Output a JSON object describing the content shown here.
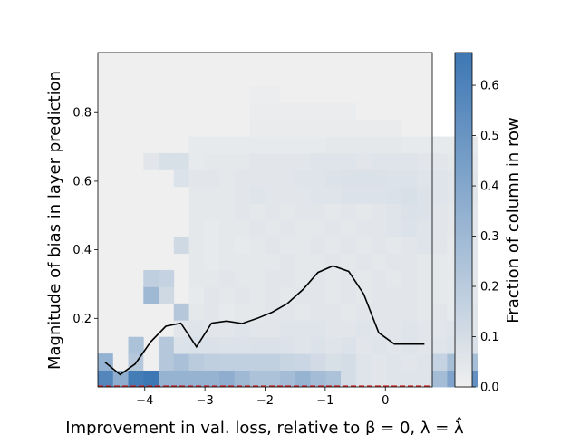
{
  "chart_data": {
    "type": "heatmap",
    "xlabel": "Improvement in val. loss, relative to β = 0, λ = λ̂",
    "ylabel": "Magnitude of bias in layer prediction",
    "colorbar_label": "Fraction of column in row",
    "xlim": [
      -4.78,
      0.78
    ],
    "ylim": [
      0.0,
      0.975
    ],
    "x_ticks": [
      -4,
      -3,
      -2,
      -1,
      0
    ],
    "x_tick_labels": [
      "−4",
      "−3",
      "−2",
      "−1",
      "0"
    ],
    "y_ticks": [
      0.2,
      0.4,
      0.6,
      0.8
    ],
    "y_tick_labels": [
      "0.2",
      "0.4",
      "0.6",
      "0.8"
    ],
    "colorbar_ticks": [
      0.0,
      0.1,
      0.2,
      0.3,
      0.4,
      0.5,
      0.6
    ],
    "colorbar_tick_labels": [
      "0.0",
      "0.1",
      "0.2",
      "0.3",
      "0.4",
      "0.5",
      "0.6"
    ],
    "colorbar_range": [
      0.0,
      0.665
    ],
    "colormap": [
      "#efefef",
      "#3d77b4"
    ],
    "bin_x_start": -4.78,
    "bin_x_width": 0.2525,
    "bin_y_width": 0.0487,
    "cells": [
      [
        0,
        0,
        0.58
      ],
      [
        1,
        0,
        0.36
      ],
      [
        2,
        0,
        0.64
      ],
      [
        3,
        0,
        0.66
      ],
      [
        4,
        0,
        0.33
      ],
      [
        5,
        0,
        0.33
      ],
      [
        6,
        0,
        0.33
      ],
      [
        7,
        0,
        0.33
      ],
      [
        8,
        0,
        0.36
      ],
      [
        9,
        0,
        0.3
      ],
      [
        10,
        0,
        0.25
      ],
      [
        11,
        0,
        0.25
      ],
      [
        12,
        0,
        0.28
      ],
      [
        13,
        0,
        0.33
      ],
      [
        14,
        0,
        0.28
      ],
      [
        15,
        0,
        0.25
      ],
      [
        16,
        0,
        0.1
      ],
      [
        17,
        0,
        0.06
      ],
      [
        18,
        0,
        0.05
      ],
      [
        19,
        0,
        0.06
      ],
      [
        20,
        0,
        0.06
      ],
      [
        21,
        0,
        0.06
      ],
      [
        22,
        0,
        0.28
      ],
      [
        23,
        0,
        0.42
      ],
      [
        24,
        0,
        0.52
      ],
      [
        0,
        1,
        0.34
      ],
      [
        1,
        1,
        0.0
      ],
      [
        2,
        1,
        0.22
      ],
      [
        3,
        1,
        0.0
      ],
      [
        4,
        1,
        0.22
      ],
      [
        5,
        1,
        0.26
      ],
      [
        6,
        1,
        0.2
      ],
      [
        7,
        1,
        0.18
      ],
      [
        8,
        1,
        0.17
      ],
      [
        9,
        1,
        0.17
      ],
      [
        10,
        1,
        0.17
      ],
      [
        11,
        1,
        0.17
      ],
      [
        12,
        1,
        0.15
      ],
      [
        13,
        1,
        0.14
      ],
      [
        14,
        1,
        0.11
      ],
      [
        15,
        1,
        0.09
      ],
      [
        16,
        1,
        0.1
      ],
      [
        17,
        1,
        0.06
      ],
      [
        18,
        1,
        0.05
      ],
      [
        19,
        1,
        0.06
      ],
      [
        20,
        1,
        0.05
      ],
      [
        21,
        1,
        0.06
      ],
      [
        22,
        1,
        0.16
      ],
      [
        23,
        1,
        0.27
      ],
      [
        24,
        1,
        0.27
      ],
      [
        2,
        2,
        0.25
      ],
      [
        4,
        2,
        0.22
      ],
      [
        5,
        2,
        0.07
      ],
      [
        6,
        2,
        0.08
      ],
      [
        7,
        2,
        0.08
      ],
      [
        8,
        2,
        0.07
      ],
      [
        9,
        2,
        0.07
      ],
      [
        10,
        2,
        0.08
      ],
      [
        11,
        2,
        0.08
      ],
      [
        12,
        2,
        0.07
      ],
      [
        13,
        2,
        0.06
      ],
      [
        14,
        2,
        0.07
      ],
      [
        15,
        2,
        0.06
      ],
      [
        16,
        2,
        0.07
      ],
      [
        17,
        2,
        0.05
      ],
      [
        18,
        2,
        0.06
      ],
      [
        19,
        2,
        0.05
      ],
      [
        20,
        2,
        0.06
      ],
      [
        21,
        2,
        0.05
      ],
      [
        22,
        2,
        0.06
      ],
      [
        23,
        2,
        0.07
      ],
      [
        24,
        2,
        0.08
      ],
      [
        3,
        3,
        0.0
      ],
      [
        5,
        3,
        0.05
      ],
      [
        6,
        3,
        0.06
      ],
      [
        7,
        3,
        0.05
      ],
      [
        8,
        3,
        0.05
      ],
      [
        9,
        3,
        0.06
      ],
      [
        10,
        3,
        0.05
      ],
      [
        11,
        3,
        0.05
      ],
      [
        12,
        3,
        0.06
      ],
      [
        13,
        3,
        0.06
      ],
      [
        14,
        3,
        0.06
      ],
      [
        15,
        3,
        0.05
      ],
      [
        16,
        3,
        0.05
      ],
      [
        17,
        3,
        0.06
      ],
      [
        18,
        3,
        0.05
      ],
      [
        19,
        3,
        0.05
      ],
      [
        20,
        3,
        0.06
      ],
      [
        21,
        3,
        0.05
      ],
      [
        22,
        3,
        0.05
      ],
      [
        23,
        3,
        0.06
      ],
      [
        24,
        3,
        0.05
      ],
      [
        4,
        4,
        0.0
      ],
      [
        5,
        4,
        0.22
      ],
      [
        6,
        4,
        0.04
      ],
      [
        7,
        4,
        0.05
      ],
      [
        8,
        4,
        0.03
      ],
      [
        9,
        4,
        0.04
      ],
      [
        10,
        4,
        0.04
      ],
      [
        11,
        4,
        0.05
      ],
      [
        12,
        4,
        0.05
      ],
      [
        13,
        4,
        0.04
      ],
      [
        14,
        4,
        0.05
      ],
      [
        15,
        4,
        0.05
      ],
      [
        16,
        4,
        0.04
      ],
      [
        17,
        4,
        0.05
      ],
      [
        18,
        4,
        0.05
      ],
      [
        19,
        4,
        0.05
      ],
      [
        20,
        4,
        0.05
      ],
      [
        21,
        4,
        0.04
      ],
      [
        22,
        4,
        0.05
      ],
      [
        23,
        4,
        0.03
      ],
      [
        24,
        4,
        0.05
      ],
      [
        3,
        5,
        0.3
      ],
      [
        4,
        5,
        0.12
      ],
      [
        6,
        5,
        0.03
      ],
      [
        7,
        5,
        0.05
      ],
      [
        8,
        5,
        0.04
      ],
      [
        9,
        5,
        0.05
      ],
      [
        10,
        5,
        0.04
      ],
      [
        11,
        5,
        0.05
      ],
      [
        12,
        5,
        0.04
      ],
      [
        13,
        5,
        0.05
      ],
      [
        14,
        5,
        0.05
      ],
      [
        15,
        5,
        0.04
      ],
      [
        16,
        5,
        0.05
      ],
      [
        17,
        5,
        0.04
      ],
      [
        18,
        5,
        0.05
      ],
      [
        19,
        5,
        0.05
      ],
      [
        20,
        5,
        0.05
      ],
      [
        21,
        5,
        0.04
      ],
      [
        22,
        5,
        0.04
      ],
      [
        23,
        5,
        0.03
      ],
      [
        24,
        5,
        0.04
      ],
      [
        3,
        6,
        0.18
      ],
      [
        4,
        6,
        0.16
      ],
      [
        6,
        6,
        0.04
      ],
      [
        7,
        6,
        0.04
      ],
      [
        8,
        6,
        0.05
      ],
      [
        9,
        6,
        0.04
      ],
      [
        10,
        6,
        0.04
      ],
      [
        11,
        6,
        0.05
      ],
      [
        12,
        6,
        0.05
      ],
      [
        13,
        6,
        0.04
      ],
      [
        14,
        6,
        0.05
      ],
      [
        15,
        6,
        0.04
      ],
      [
        16,
        6,
        0.05
      ],
      [
        17,
        6,
        0.04
      ],
      [
        18,
        6,
        0.05
      ],
      [
        19,
        6,
        0.04
      ],
      [
        20,
        6,
        0.05
      ],
      [
        21,
        6,
        0.04
      ],
      [
        22,
        6,
        0.04
      ],
      [
        23,
        6,
        0.03
      ],
      [
        24,
        6,
        0.04
      ],
      [
        6,
        7,
        0.04
      ],
      [
        7,
        7,
        0.03
      ],
      [
        8,
        7,
        0.04
      ],
      [
        9,
        7,
        0.04
      ],
      [
        10,
        7,
        0.04
      ],
      [
        11,
        7,
        0.04
      ],
      [
        12,
        7,
        0.05
      ],
      [
        13,
        7,
        0.04
      ],
      [
        14,
        7,
        0.04
      ],
      [
        15,
        7,
        0.05
      ],
      [
        16,
        7,
        0.04
      ],
      [
        17,
        7,
        0.05
      ],
      [
        18,
        7,
        0.04
      ],
      [
        19,
        7,
        0.05
      ],
      [
        20,
        7,
        0.05
      ],
      [
        21,
        7,
        0.04
      ],
      [
        22,
        7,
        0.04
      ],
      [
        23,
        7,
        0.03
      ],
      [
        24,
        7,
        0.04
      ],
      [
        5,
        8,
        0.12
      ],
      [
        6,
        8,
        0.04
      ],
      [
        7,
        8,
        0.03
      ],
      [
        8,
        8,
        0.04
      ],
      [
        9,
        8,
        0.03
      ],
      [
        10,
        8,
        0.04
      ],
      [
        11,
        8,
        0.05
      ],
      [
        12,
        8,
        0.04
      ],
      [
        13,
        8,
        0.04
      ],
      [
        14,
        8,
        0.05
      ],
      [
        15,
        8,
        0.04
      ],
      [
        16,
        8,
        0.05
      ],
      [
        17,
        8,
        0.04
      ],
      [
        18,
        8,
        0.05
      ],
      [
        19,
        8,
        0.04
      ],
      [
        20,
        8,
        0.05
      ],
      [
        21,
        8,
        0.06
      ],
      [
        22,
        8,
        0.05
      ],
      [
        23,
        8,
        0.03
      ],
      [
        24,
        8,
        0.04
      ],
      [
        6,
        9,
        0.04
      ],
      [
        7,
        9,
        0.03
      ],
      [
        8,
        9,
        0.04
      ],
      [
        9,
        9,
        0.04
      ],
      [
        10,
        9,
        0.05
      ],
      [
        11,
        9,
        0.04
      ],
      [
        12,
        9,
        0.05
      ],
      [
        13,
        9,
        0.04
      ],
      [
        14,
        9,
        0.04
      ],
      [
        15,
        9,
        0.05
      ],
      [
        16,
        9,
        0.04
      ],
      [
        17,
        9,
        0.05
      ],
      [
        18,
        9,
        0.05
      ],
      [
        19,
        9,
        0.06
      ],
      [
        20,
        9,
        0.07
      ],
      [
        21,
        9,
        0.06
      ],
      [
        22,
        9,
        0.05
      ],
      [
        23,
        9,
        0.04
      ],
      [
        24,
        9,
        0.04
      ],
      [
        6,
        10,
        0.04
      ],
      [
        7,
        10,
        0.04
      ],
      [
        8,
        10,
        0.04
      ],
      [
        9,
        10,
        0.05
      ],
      [
        10,
        10,
        0.04
      ],
      [
        11,
        10,
        0.05
      ],
      [
        12,
        10,
        0.04
      ],
      [
        13,
        10,
        0.05
      ],
      [
        14,
        10,
        0.05
      ],
      [
        15,
        10,
        0.04
      ],
      [
        16,
        10,
        0.05
      ],
      [
        17,
        10,
        0.04
      ],
      [
        18,
        10,
        0.05
      ],
      [
        19,
        10,
        0.06
      ],
      [
        20,
        10,
        0.08
      ],
      [
        21,
        10,
        0.07
      ],
      [
        22,
        10,
        0.05
      ],
      [
        23,
        10,
        0.04
      ],
      [
        24,
        10,
        0.04
      ],
      [
        6,
        11,
        0.04
      ],
      [
        7,
        11,
        0.04
      ],
      [
        8,
        11,
        0.04
      ],
      [
        9,
        11,
        0.05
      ],
      [
        10,
        11,
        0.06
      ],
      [
        11,
        11,
        0.05
      ],
      [
        12,
        11,
        0.05
      ],
      [
        13,
        11,
        0.05
      ],
      [
        14,
        11,
        0.06
      ],
      [
        15,
        11,
        0.06
      ],
      [
        16,
        11,
        0.07
      ],
      [
        17,
        11,
        0.07
      ],
      [
        18,
        11,
        0.07
      ],
      [
        19,
        11,
        0.08
      ],
      [
        20,
        11,
        0.09
      ],
      [
        21,
        11,
        0.07
      ],
      [
        22,
        11,
        0.06
      ],
      [
        23,
        11,
        0.05
      ],
      [
        24,
        11,
        0.05
      ],
      [
        5,
        12,
        0.07
      ],
      [
        6,
        12,
        0.05
      ],
      [
        7,
        12,
        0.05
      ],
      [
        8,
        12,
        0.04
      ],
      [
        9,
        12,
        0.05
      ],
      [
        10,
        12,
        0.05
      ],
      [
        11,
        12,
        0.05
      ],
      [
        12,
        12,
        0.05
      ],
      [
        13,
        12,
        0.06
      ],
      [
        14,
        12,
        0.06
      ],
      [
        15,
        12,
        0.07
      ],
      [
        16,
        12,
        0.08
      ],
      [
        17,
        12,
        0.08
      ],
      [
        18,
        12,
        0.08
      ],
      [
        19,
        12,
        0.07
      ],
      [
        20,
        12,
        0.07
      ],
      [
        21,
        12,
        0.06
      ],
      [
        22,
        12,
        0.06
      ],
      [
        23,
        12,
        0.05
      ],
      [
        24,
        12,
        0.05
      ],
      [
        3,
        13,
        0.05
      ],
      [
        4,
        13,
        0.09
      ],
      [
        5,
        13,
        0.09
      ],
      [
        6,
        13,
        0.03
      ],
      [
        7,
        13,
        0.04
      ],
      [
        8,
        13,
        0.04
      ],
      [
        9,
        13,
        0.04
      ],
      [
        10,
        13,
        0.05
      ],
      [
        11,
        13,
        0.05
      ],
      [
        12,
        13,
        0.05
      ],
      [
        13,
        13,
        0.05
      ],
      [
        14,
        13,
        0.06
      ],
      [
        15,
        13,
        0.06
      ],
      [
        16,
        13,
        0.06
      ],
      [
        17,
        13,
        0.05
      ],
      [
        18,
        13,
        0.06
      ],
      [
        19,
        13,
        0.06
      ],
      [
        20,
        13,
        0.06
      ],
      [
        21,
        13,
        0.05
      ],
      [
        22,
        13,
        0.05
      ],
      [
        23,
        13,
        0.04
      ],
      [
        24,
        13,
        0.04
      ],
      [
        6,
        14,
        0.03
      ],
      [
        7,
        14,
        0.03
      ],
      [
        8,
        14,
        0.03
      ],
      [
        9,
        14,
        0.03
      ],
      [
        10,
        14,
        0.03
      ],
      [
        11,
        14,
        0.03
      ],
      [
        12,
        14,
        0.03
      ],
      [
        13,
        14,
        0.03
      ],
      [
        14,
        14,
        0.03
      ],
      [
        15,
        14,
        0.04
      ],
      [
        16,
        14,
        0.04
      ],
      [
        17,
        14,
        0.04
      ],
      [
        18,
        14,
        0.04
      ],
      [
        19,
        14,
        0.04
      ],
      [
        20,
        14,
        0.03
      ],
      [
        21,
        14,
        0.03
      ],
      [
        22,
        14,
        0.03
      ],
      [
        23,
        14,
        0.03
      ],
      [
        24,
        14,
        0.03
      ],
      [
        10,
        15,
        0.02
      ],
      [
        11,
        15,
        0.02
      ],
      [
        12,
        15,
        0.02
      ],
      [
        13,
        15,
        0.02
      ],
      [
        14,
        15,
        0.02
      ],
      [
        15,
        15,
        0.02
      ],
      [
        16,
        15,
        0.02
      ],
      [
        17,
        15,
        0.02
      ],
      [
        18,
        15,
        0.02
      ],
      [
        19,
        15,
        0.02
      ],
      [
        10,
        16,
        0.015
      ],
      [
        11,
        16,
        0.015
      ],
      [
        12,
        16,
        0.015
      ],
      [
        13,
        16,
        0.015
      ],
      [
        14,
        16,
        0.015
      ],
      [
        15,
        16,
        0.015
      ],
      [
        16,
        16,
        0.015
      ],
      [
        10,
        17,
        0.01
      ],
      [
        11,
        17,
        0.01
      ]
    ],
    "series": [
      {
        "x": [
          -4.66,
          -4.41,
          -4.16,
          -3.9,
          -3.65,
          -3.4,
          -3.14,
          -2.89,
          -2.64,
          -2.38,
          -2.13,
          -1.88,
          -1.63,
          -1.37,
          -1.12,
          -0.87,
          -0.61,
          -0.36,
          -0.11,
          0.15,
          0.4,
          0.65
        ],
        "y": [
          0.072,
          0.036,
          0.067,
          0.132,
          0.177,
          0.186,
          0.117,
          0.186,
          0.192,
          0.185,
          0.2,
          0.218,
          0.243,
          0.284,
          0.334,
          0.353,
          0.337,
          0.271,
          0.158,
          0.125,
          0.125,
          0.125
        ],
        "color": "#000000"
      }
    ],
    "reference_line": {
      "y": 0.0,
      "style": "dashed",
      "color": "#cc2222"
    }
  }
}
